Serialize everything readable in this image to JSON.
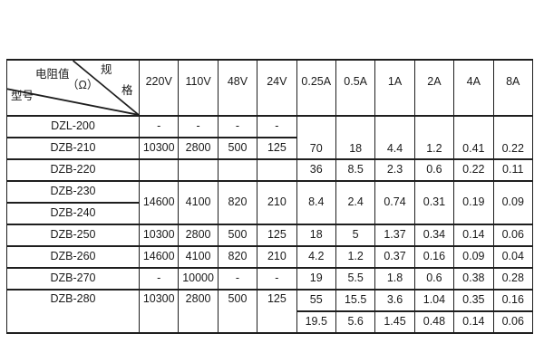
{
  "page": {
    "background": "#ffffff",
    "border_color": "#1e1e1e",
    "text_color": "#1a1a1a"
  },
  "table": {
    "corner": {
      "spec_char_1": "规",
      "spec_char_2": "格",
      "resistance_label": "电阻值",
      "resistance_unit": "（Ω）",
      "model_label": "型号"
    },
    "column_headers": [
      "220V",
      "110V",
      "48V",
      "24V",
      "0.25A",
      "0.5A",
      "1A",
      "2A",
      "4A",
      "8A"
    ],
    "body_rows": [
      {
        "cells": [
          {
            "text": "DZL-200"
          },
          {
            "text": "-"
          },
          {
            "text": "-"
          },
          {
            "text": "-"
          },
          {
            "text": "-"
          },
          {
            "text": "70",
            "rowspan": 2,
            "valign": "bottom"
          },
          {
            "text": "18",
            "rowspan": 2,
            "valign": "bottom"
          },
          {
            "text": "4.4",
            "rowspan": 2,
            "valign": "bottom"
          },
          {
            "text": "1.2",
            "rowspan": 2,
            "valign": "bottom"
          },
          {
            "text": "0.41",
            "rowspan": 2,
            "valign": "bottom"
          },
          {
            "text": "0.22",
            "rowspan": 2,
            "valign": "bottom"
          }
        ]
      },
      {
        "cells": [
          {
            "text": "DZB-210"
          },
          {
            "text": "10300"
          },
          {
            "text": "2800"
          },
          {
            "text": "500"
          },
          {
            "text": "125"
          }
        ]
      },
      {
        "cells": [
          {
            "text": "DZB-220"
          },
          {
            "text": ""
          },
          {
            "text": ""
          },
          {
            "text": ""
          },
          {
            "text": ""
          },
          {
            "text": "36"
          },
          {
            "text": "8.5"
          },
          {
            "text": "2.3"
          },
          {
            "text": "0.6"
          },
          {
            "text": "0.22"
          },
          {
            "text": "0.11"
          }
        ]
      },
      {
        "cells": [
          {
            "text": "DZB-230"
          },
          {
            "text": "14600",
            "rowspan": 2
          },
          {
            "text": "4100",
            "rowspan": 2
          },
          {
            "text": "820",
            "rowspan": 2
          },
          {
            "text": "210",
            "rowspan": 2
          },
          {
            "text": "8.4",
            "rowspan": 2
          },
          {
            "text": "2.4",
            "rowspan": 2
          },
          {
            "text": "0.74",
            "rowspan": 2
          },
          {
            "text": "0.31",
            "rowspan": 2
          },
          {
            "text": "0.19",
            "rowspan": 2
          },
          {
            "text": "0.09",
            "rowspan": 2
          }
        ]
      },
      {
        "cells": [
          {
            "text": "DZB-240"
          }
        ]
      },
      {
        "cells": [
          {
            "text": "DZB-250"
          },
          {
            "text": "10300"
          },
          {
            "text": "2800"
          },
          {
            "text": "500"
          },
          {
            "text": "125"
          },
          {
            "text": "18"
          },
          {
            "text": "5"
          },
          {
            "text": "1.37"
          },
          {
            "text": "0.34"
          },
          {
            "text": "0.14"
          },
          {
            "text": "0.06"
          }
        ]
      },
      {
        "cells": [
          {
            "text": "DZB-260"
          },
          {
            "text": "14600"
          },
          {
            "text": "4100"
          },
          {
            "text": "820"
          },
          {
            "text": "210"
          },
          {
            "text": "4.2"
          },
          {
            "text": "1.2"
          },
          {
            "text": "0.37"
          },
          {
            "text": "0.16"
          },
          {
            "text": "0.09"
          },
          {
            "text": "0.04"
          }
        ]
      },
      {
        "cells": [
          {
            "text": "DZB-270"
          },
          {
            "text": "-"
          },
          {
            "text": "10000"
          },
          {
            "text": "-"
          },
          {
            "text": "-"
          },
          {
            "text": "19"
          },
          {
            "text": "5.5"
          },
          {
            "text": "1.8"
          },
          {
            "text": "0.6"
          },
          {
            "text": "0.38"
          },
          {
            "text": "0.28"
          }
        ]
      },
      {
        "cells": [
          {
            "text": "DZB-280",
            "rowspan": 2,
            "valign": "top"
          },
          {
            "text": "10300",
            "rowspan": 2,
            "valign": "top"
          },
          {
            "text": "2800",
            "rowspan": 2,
            "valign": "top"
          },
          {
            "text": "500",
            "rowspan": 2,
            "valign": "top"
          },
          {
            "text": "125",
            "rowspan": 2,
            "valign": "top"
          },
          {
            "text": "55"
          },
          {
            "text": "15.5"
          },
          {
            "text": "3.6"
          },
          {
            "text": "1.04"
          },
          {
            "text": "0.35"
          },
          {
            "text": "0.16"
          }
        ]
      },
      {
        "cells": [
          {
            "text": "19.5"
          },
          {
            "text": "5.6"
          },
          {
            "text": "1.45"
          },
          {
            "text": "0.48"
          },
          {
            "text": "0.14"
          },
          {
            "text": "0.06"
          }
        ]
      }
    ]
  }
}
